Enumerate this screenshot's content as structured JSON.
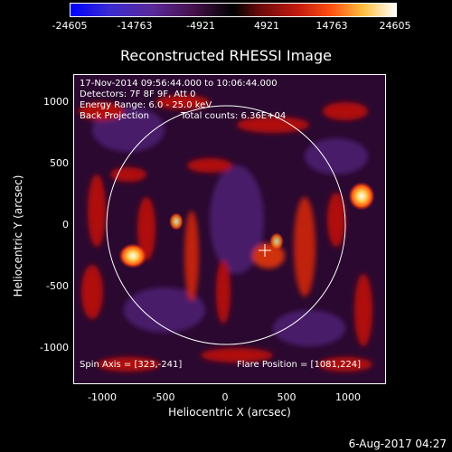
{
  "colorbar": {
    "ticks": [
      "-24605",
      "-14763",
      "-4921",
      "4921",
      "14763",
      "24605"
    ]
  },
  "title": "Reconstructed RHESSI Image",
  "annotations": {
    "line1": "17-Nov-2014 09:56:44.000 to 10:06:44.000",
    "line2": "Detectors: 7F 8F 9F, Att 0",
    "line3": "Energy Range: 6.0 - 25.0 keV",
    "line4_left": "Back Projection",
    "line4_right": "Total counts: 6.36E+04",
    "spin_axis": "Spin Axis = [323,-241]",
    "flare_position": "Flare Position = [1081,224]"
  },
  "axes": {
    "x_label": "Heliocentric X (arcsec)",
    "y_label": "Heliocentric Y (arcsec)",
    "x_ticks": [
      "-1000",
      "-500",
      "0",
      "500",
      "1000"
    ],
    "y_ticks": [
      "1000",
      "500",
      "0",
      "-500",
      "-1000"
    ]
  },
  "footer_date": "6-Aug-2017 04:27",
  "colors": {
    "background": "#000000",
    "limb": "#ffffff",
    "image_base": "#2a0830"
  }
}
